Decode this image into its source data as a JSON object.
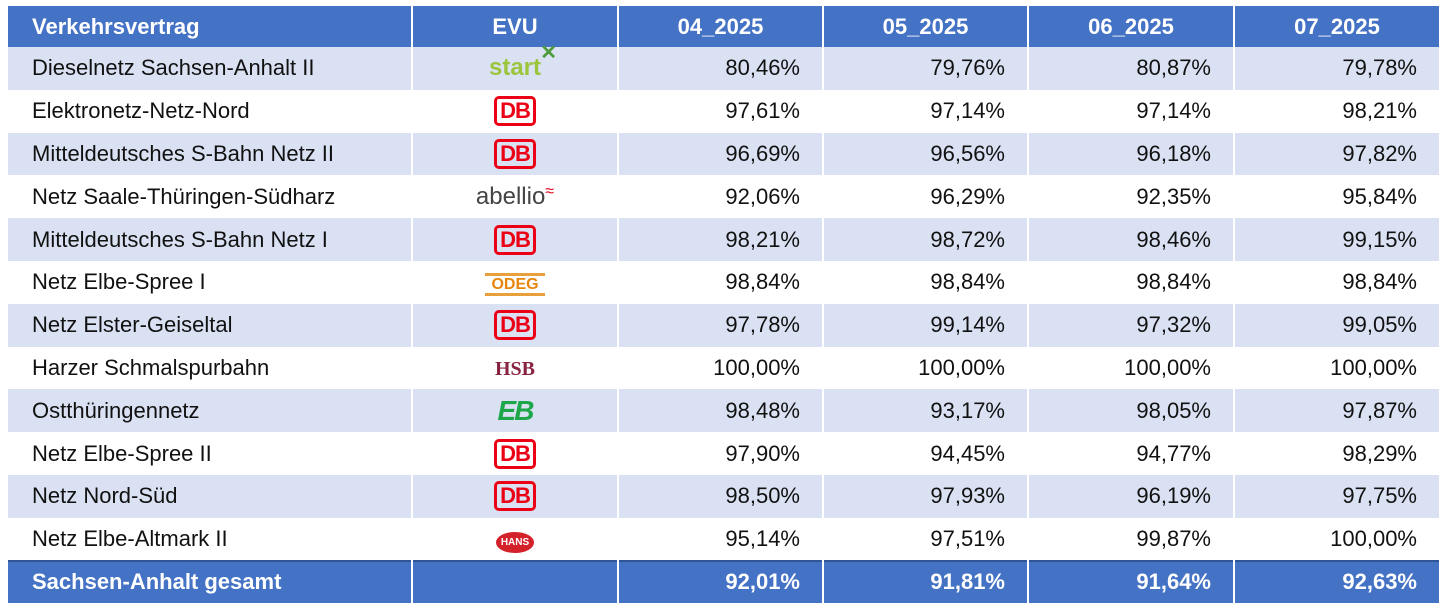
{
  "headers": [
    "Verkehrsvertrag",
    "EVU",
    "04_2025",
    "05_2025",
    "06_2025",
    "07_2025"
  ],
  "colors": {
    "header": "#4472C4",
    "band": "#D9E1F2",
    "db_red": "#EC0016"
  },
  "rows": [
    {
      "name": "Dieselnetz Sachsen-Anhalt II",
      "evu": "start",
      "values": [
        "80,46%",
        "79,76%",
        "80,87%",
        "79,78%"
      ]
    },
    {
      "name": "Elektronetz-Netz-Nord",
      "evu": "DB",
      "values": [
        "97,61%",
        "97,14%",
        "97,14%",
        "98,21%"
      ]
    },
    {
      "name": "Mitteldeutsches S-Bahn Netz II",
      "evu": "DB",
      "values": [
        "96,69%",
        "96,56%",
        "96,18%",
        "97,82%"
      ]
    },
    {
      "name": "Netz Saale-Thüringen-Südharz",
      "evu": "abellio",
      "values": [
        "92,06%",
        "96,29%",
        "92,35%",
        "95,84%"
      ]
    },
    {
      "name": "Mitteldeutsches S-Bahn Netz I",
      "evu": "DB",
      "values": [
        "98,21%",
        "98,72%",
        "98,46%",
        "99,15%"
      ]
    },
    {
      "name": "Netz Elbe-Spree I",
      "evu": "ODEG",
      "values": [
        "98,84%",
        "98,84%",
        "98,84%",
        "98,84%"
      ]
    },
    {
      "name": "Netz Elster-Geiseltal",
      "evu": "DB",
      "values": [
        "97,78%",
        "99,14%",
        "97,32%",
        "99,05%"
      ]
    },
    {
      "name": "Harzer Schmalspurbahn",
      "evu": "HSB",
      "values": [
        "100,00%",
        "100,00%",
        "100,00%",
        "100,00%"
      ]
    },
    {
      "name": "Ostthüringennetz",
      "evu": "EB",
      "values": [
        "98,48%",
        "93,17%",
        "98,05%",
        "97,87%"
      ]
    },
    {
      "name": "Netz Elbe-Spree II",
      "evu": "DB",
      "values": [
        "97,90%",
        "94,45%",
        "94,77%",
        "98,29%"
      ]
    },
    {
      "name": "Netz Nord-Süd",
      "evu": "DB",
      "values": [
        "98,50%",
        "97,93%",
        "96,19%",
        "97,75%"
      ]
    },
    {
      "name": "Netz Elbe-Altmark II",
      "evu": "HANS",
      "values": [
        "95,14%",
        "97,51%",
        "99,87%",
        "100,00%"
      ]
    }
  ],
  "total": {
    "name": "Sachsen-Anhalt gesamt",
    "values": [
      "92,01%",
      "91,81%",
      "91,64%",
      "92,63%"
    ]
  }
}
